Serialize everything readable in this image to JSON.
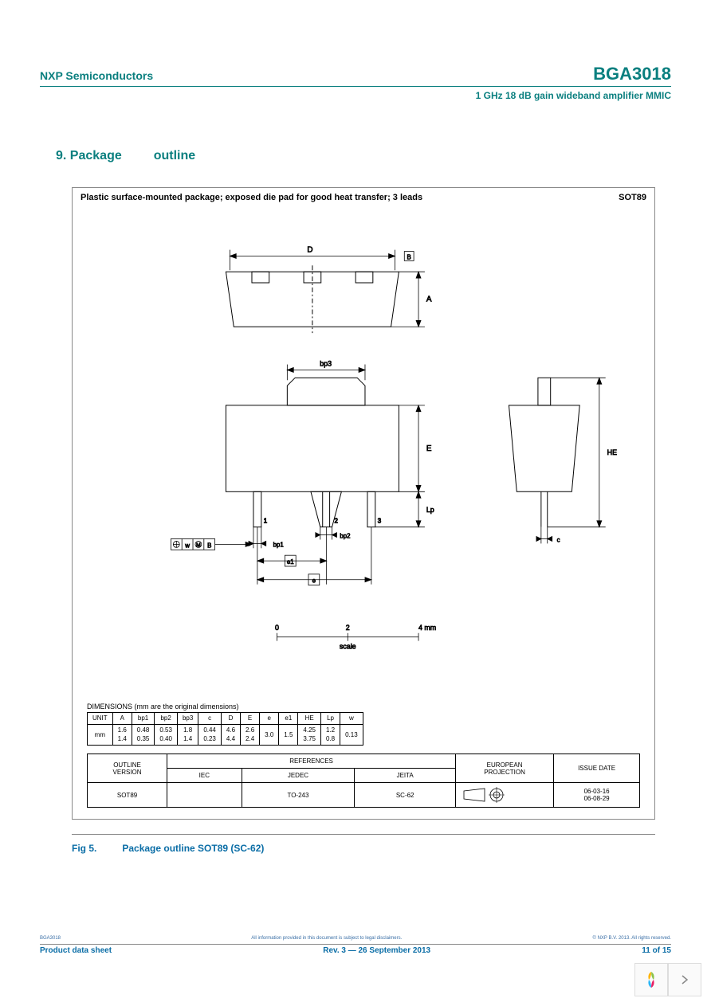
{
  "header": {
    "company": "NXP Semiconductors",
    "part_number": "BGA3018",
    "subtitle": "1 GHz 18 dB gain wideband amplifier MMIC"
  },
  "section": {
    "number": "9.",
    "title_a": "Package",
    "title_b": "outline"
  },
  "figure": {
    "title": "Plastic surface-mounted package; exposed die pad for good heat transfer; 3 leads",
    "pkg_code": "SOT89",
    "scale_label": "scale",
    "scale_ticks": [
      "0",
      "2",
      "4 mm"
    ],
    "dim_labels": {
      "D": "D",
      "B": "B",
      "A": "A",
      "bp3": "bp3",
      "E": "E",
      "HE": "HE",
      "Lp": "Lp",
      "c": "c",
      "bp1": "bp1",
      "bp2": "bp2",
      "e": "e",
      "e1": "e1",
      "w": "w"
    },
    "pin_labels": [
      "1",
      "2",
      "3"
    ]
  },
  "dimensions": {
    "caption": "DIMENSIONS (mm are the original dimensions)",
    "columns": [
      "UNIT",
      "A",
      "bp1",
      "bp2",
      "bp3",
      "c",
      "D",
      "E",
      "e",
      "e1",
      "HE",
      "Lp",
      "w"
    ],
    "rows": [
      [
        "mm",
        "1.6\n1.4",
        "0.48\n0.35",
        "0.53\n0.40",
        "1.8\n1.4",
        "0.44\n0.23",
        "4.6\n4.4",
        "2.6\n2.4",
        "3.0",
        "1.5",
        "4.25\n3.75",
        "1.2\n0.8",
        "0.13"
      ]
    ]
  },
  "references": {
    "outline_header": "OUTLINE\nVERSION",
    "references_header": "REFERENCES",
    "orgs": [
      "IEC",
      "JEDEC",
      "JEITA"
    ],
    "projection_header": "EUROPEAN\nPROJECTION",
    "issue_header": "ISSUE DATE",
    "outline_version": "SOT89",
    "iec": "",
    "jedec": "TO-243",
    "jeita": "SC-62",
    "issue_date": "06-03-16\n06-08-29"
  },
  "caption": {
    "fig_num": "Fig 5.",
    "text": "Package outline SOT89 (SC-62)"
  },
  "footer": {
    "left": "Product data sheet",
    "center": "Rev. 3 — 26 September 2013",
    "right": "11 of 15"
  },
  "colors": {
    "teal": "#0a7f7f",
    "blue": "#0a6da6",
    "border": "#888888"
  }
}
